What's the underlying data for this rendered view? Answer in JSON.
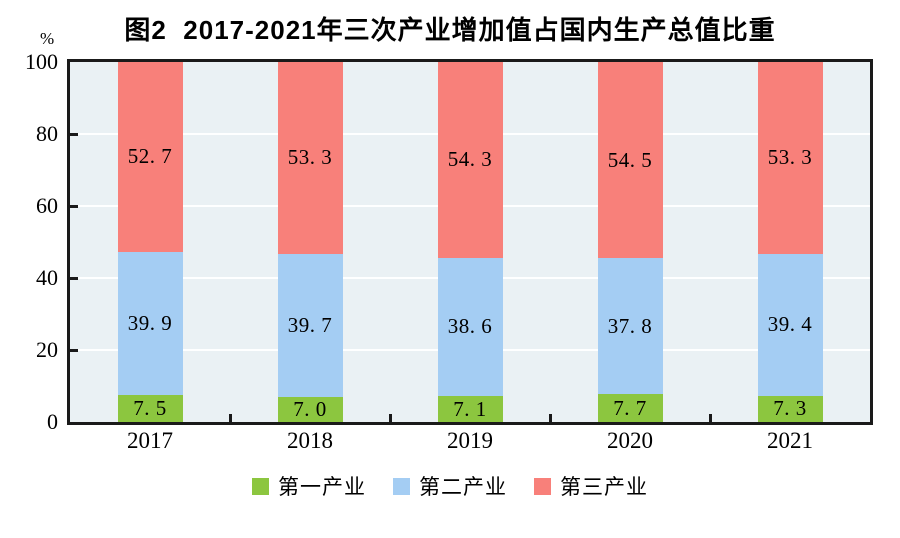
{
  "chart_data": {
    "type": "bar",
    "stacked": true,
    "title": "图2  2017-2021年三次产业增加值占国内生产总值比重",
    "ylabel": "%",
    "ylim": [
      0,
      100
    ],
    "y_ticks": [
      0,
      20,
      40,
      60,
      80,
      100
    ],
    "grid": true,
    "legend_position": "bottom",
    "categories": [
      "2017",
      "2018",
      "2019",
      "2020",
      "2021"
    ],
    "series": [
      {
        "key": "primary-industry",
        "name": "第一产业",
        "color": "#8cc63f",
        "values": [
          7.5,
          7.0,
          7.1,
          7.7,
          7.3
        ],
        "labels": [
          "7. 5",
          "7. 0",
          "7. 1",
          "7. 7",
          "7. 3"
        ]
      },
      {
        "key": "secondary-industry",
        "name": "第二产业",
        "color": "#a4cdf3",
        "values": [
          39.9,
          39.7,
          38.6,
          37.8,
          39.4
        ],
        "labels": [
          "39. 9",
          "39. 7",
          "38. 6",
          "37. 8",
          "39. 4"
        ]
      },
      {
        "key": "tertiary-industry",
        "name": "第三产业",
        "color": "#f8807a",
        "values": [
          52.7,
          53.3,
          54.3,
          54.5,
          53.3
        ],
        "labels": [
          "52. 7",
          "53. 3",
          "54. 3",
          "54. 5",
          "53. 3"
        ]
      }
    ],
    "colors": {
      "plot_background": "#eaf1f4",
      "gridline": "#ffffff",
      "axis": "#1a1a1a",
      "text": "#000000"
    }
  }
}
